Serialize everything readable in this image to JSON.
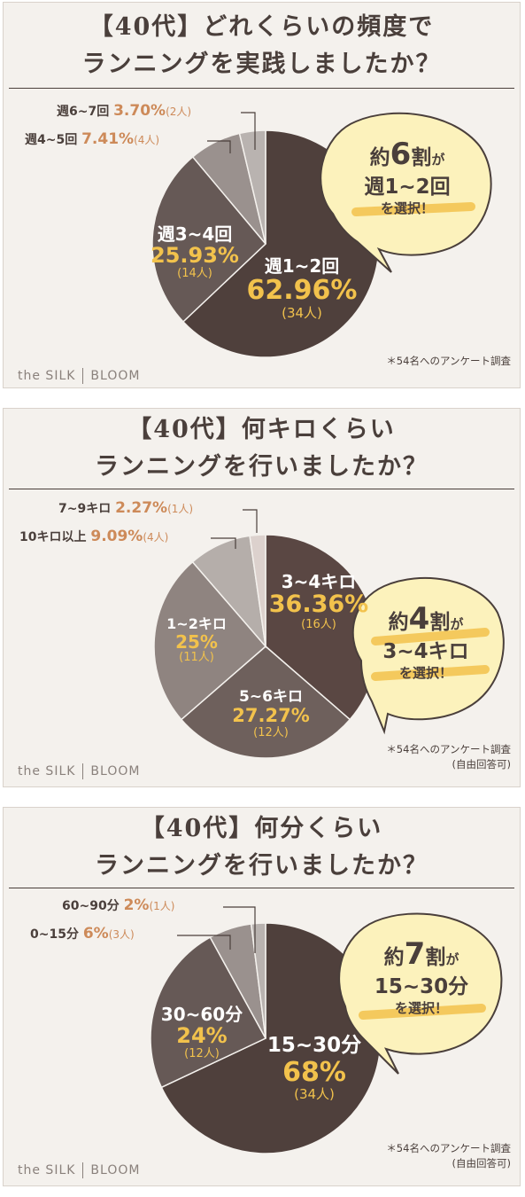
{
  "brand": {
    "left": "the SILK",
    "right": "BLOOM"
  },
  "chart_data": [
    {
      "type": "pie",
      "title_line1": "【40代】どれくらいの頻度で",
      "title_line2": "ランニングを実践しましたか？",
      "note_lines": [
        "＊54名へのアンケート調査"
      ],
      "slices": [
        {
          "label": "週1~2回",
          "percent": 62.96,
          "count": "(34人)",
          "color": "#4f403c",
          "percent_text": "62.96%"
        },
        {
          "label": "週3~4回",
          "percent": 25.93,
          "count": "(14人)",
          "color": "#665956",
          "percent_text": "25.93%"
        },
        {
          "label": "週4~5回",
          "percent": 7.41,
          "count": "(4人)",
          "color": "#9a918e",
          "percent_text": "7.41%"
        },
        {
          "label": "週6~7回",
          "percent": 3.7,
          "count": "(2人)",
          "color": "#b9b3b0",
          "percent_text": "3.70%"
        }
      ],
      "bubble": {
        "line1_a": "約",
        "line1_b": "6",
        "line1_c": "割",
        "line1_d": "が",
        "line2": "週1~2回",
        "line3": "を選択！"
      }
    },
    {
      "type": "pie",
      "title_line1": "【40代】何キロくらい",
      "title_line2": "ランニングを行いましたか？",
      "note_lines": [
        "＊54名へのアンケート調査",
        "(自由回答可)"
      ],
      "slices": [
        {
          "label": "3~4キロ",
          "percent": 36.36,
          "count": "(16人)",
          "color": "#5a4743",
          "percent_text": "36.36%"
        },
        {
          "label": "5~6キロ",
          "percent": 27.27,
          "count": "(12人)",
          "color": "#6e605c",
          "percent_text": "27.27%"
        },
        {
          "label": "1~2キロ",
          "percent": 25,
          "count": "(11人)",
          "color": "#8f8480",
          "percent_text": "25%"
        },
        {
          "label": "10キロ以上",
          "percent": 9.09,
          "count": "(4人)",
          "color": "#b5aeaa",
          "percent_text": "9.09%"
        },
        {
          "label": "7~9キロ",
          "percent": 2.27,
          "count": "(1人)",
          "color": "#dcd1cd",
          "percent_text": "2.27%"
        }
      ],
      "bubble": {
        "line1_a": "約",
        "line1_b": "4",
        "line1_c": "割",
        "line1_d": "が",
        "line2": "3~4キロ",
        "line3": "を選択！"
      }
    },
    {
      "type": "pie",
      "title_line1": "【40代】何分くらい",
      "title_line2": "ランニングを行いましたか？",
      "note_lines": [
        "＊54名へのアンケート調査",
        "(自由回答可)"
      ],
      "slices": [
        {
          "label": "15~30分",
          "percent": 68,
          "count": "(34人)",
          "color": "#4f403c",
          "percent_text": "68%"
        },
        {
          "label": "30~60分",
          "percent": 24,
          "count": "(12人)",
          "color": "#665956",
          "percent_text": "24%"
        },
        {
          "label": "0~15分",
          "percent": 6,
          "count": "(3人)",
          "color": "#9a918e",
          "percent_text": "6%"
        },
        {
          "label": "60~90分",
          "percent": 2,
          "count": "(1人)",
          "color": "#b9b3b0",
          "percent_text": "2%"
        }
      ],
      "bubble": {
        "line1_a": "約",
        "line1_b": "7",
        "line1_c": "割",
        "line1_d": "が",
        "line2": "15~30分",
        "line3": "を選択！"
      }
    }
  ]
}
